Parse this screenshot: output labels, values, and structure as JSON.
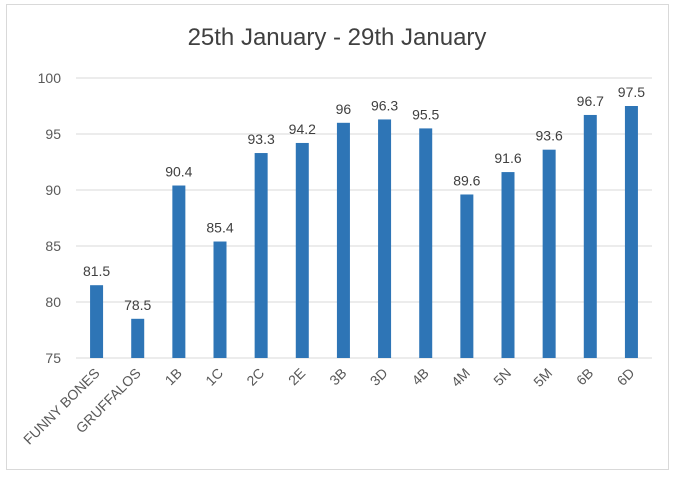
{
  "chart_data": {
    "type": "bar",
    "title": "25th January - 29th January",
    "xlabel": "",
    "ylabel": "",
    "categories": [
      "FUNNY BONES",
      "GRUFFALOS",
      "1B",
      "1C",
      "2C",
      "2E",
      "3B",
      "3D",
      "4B",
      "4M",
      "5N",
      "5M",
      "6B",
      "6D"
    ],
    "values": [
      81.5,
      78.5,
      90.4,
      85.4,
      93.3,
      94.2,
      96,
      96.3,
      95.5,
      89.6,
      91.6,
      93.6,
      96.7,
      97.5
    ],
    "data_labels": [
      "81.5",
      "78.5",
      "90.4",
      "85.4",
      "93.3",
      "94.2",
      "96",
      "96.3",
      "95.5",
      "89.6",
      "91.6",
      "93.6",
      "96.7",
      "97.5"
    ],
    "ylim": [
      75,
      100
    ],
    "yticks": [
      75,
      80,
      85,
      90,
      95,
      100
    ],
    "ytick_labels": [
      "75",
      "80",
      "85",
      "90",
      "95",
      "100"
    ],
    "grid": true,
    "legend": "none",
    "bar_color": "#2e75b6"
  }
}
